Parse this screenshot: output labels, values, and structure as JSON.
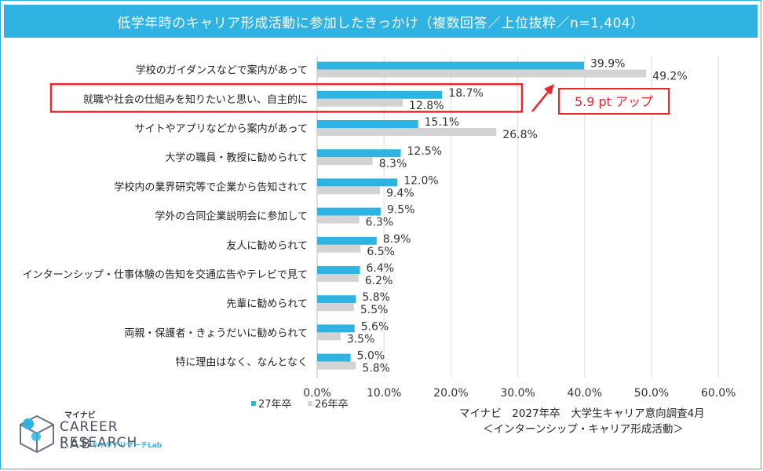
{
  "title": "低学年時のキャリア形成活動に参加したきっかけ（複数回答／上位抜粋／n=1,404）",
  "chart_data": {
    "type": "bar",
    "orientation": "horizontal",
    "categories": [
      "学校のガイダンスなどで案内があって",
      "就職や社会の仕組みを知りたいと思い、自主的に",
      "サイトやアプリなどから案内があって",
      "大学の職員・教授に勧められて",
      "学校内の業界研究等で企業から告知されて",
      "学外の合同企業説明会に参加して",
      "友人に勧められて",
      "インターンシップ・仕事体験の告知を交通広告やテレビで見て",
      "先輩に勧められて",
      "両親・保護者・きょうだいに勧められて",
      "特に理由はなく、なんとなく"
    ],
    "series": [
      {
        "name": "27年卒",
        "color": "#2eb3e3",
        "values": [
          39.9,
          18.7,
          15.1,
          12.5,
          12.0,
          9.5,
          8.9,
          6.4,
          5.8,
          5.6,
          5.0
        ],
        "labels": [
          "39.9%",
          "18.7%",
          "15.1%",
          "12.5%",
          "12.0%",
          "9.5%",
          "8.9%",
          "6.4%",
          "5.8%",
          "5.6%",
          "5.0%"
        ]
      },
      {
        "name": "26年卒",
        "color": "#d3d3d3",
        "values": [
          49.2,
          12.8,
          26.8,
          8.3,
          9.4,
          6.3,
          6.5,
          6.2,
          5.5,
          3.5,
          5.8
        ],
        "labels": [
          "49.2%",
          "12.8%",
          "26.8%",
          "8.3%",
          "9.4%",
          "6.3%",
          "6.5%",
          "6.2%",
          "5.5%",
          "3.5%",
          "5.8%"
        ]
      }
    ],
    "xlim": [
      0,
      60
    ],
    "ticks": [
      0,
      10,
      20,
      30,
      40,
      50,
      60
    ],
    "tick_labels": [
      "0.0%",
      "10.0%",
      "20.0%",
      "30.0%",
      "40.0%",
      "50.0%",
      "60.0%"
    ],
    "highlight_category_index": 1,
    "highlight_color": "#e8262c",
    "annotation": "5.9 pt  アップ"
  },
  "source": {
    "line1": "マイナビ　2027年卒　大学生キャリア意向調査4月",
    "line2": "＜インターンシップ・キャリア形成活動＞"
  },
  "logo": {
    "top": "マイナビ",
    "main": "CAREER RESEARCH",
    "lab": "LAB",
    "sub": "キャリアリサーチLab"
  }
}
